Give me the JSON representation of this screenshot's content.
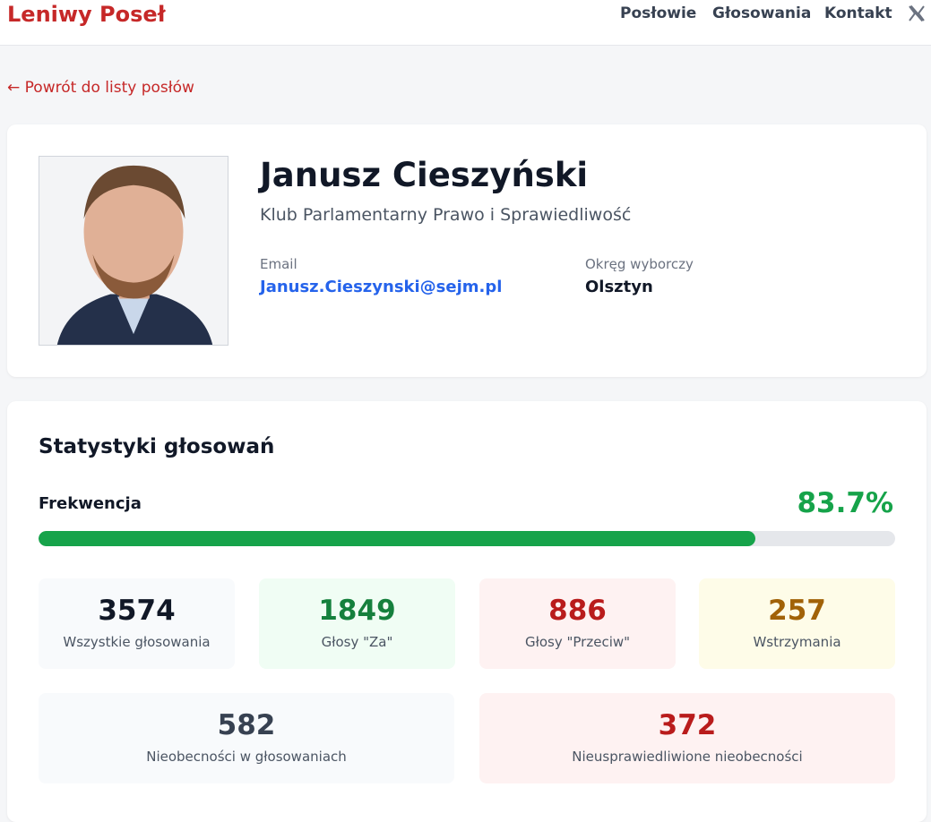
{
  "header": {
    "brand": "Leniwy Poseł",
    "nav": [
      "Posłowie",
      "Głosowania",
      "Kontakt"
    ]
  },
  "back_link": "← Powrót do listy posłów",
  "profile": {
    "name": "Janusz Cieszyński",
    "club": "Klub Parlamentarny Prawo i Sprawiedliwość",
    "email_label": "Email",
    "email": "Janusz.Cieszynski@sejm.pl",
    "district_label": "Okręg wyborczy",
    "district": "Olsztyn"
  },
  "stats": {
    "title": "Statystyki głosowań",
    "attendance_label": "Frekwencja",
    "attendance": {
      "value": 83.7,
      "label": "83.7%"
    },
    "items": [
      {
        "value": 3574,
        "label": "Wszystkie głosowania"
      },
      {
        "value": 1849,
        "label": "Głosy \"Za\""
      },
      {
        "value": 886,
        "label": "Głosy \"Przeciw\""
      },
      {
        "value": 257,
        "label": "Wstrzymania"
      },
      {
        "value": 582,
        "label": "Nieobecności w głosowaniach"
      },
      {
        "value": 372,
        "label": "Nieusprawiedliwione nieobecności"
      }
    ]
  }
}
